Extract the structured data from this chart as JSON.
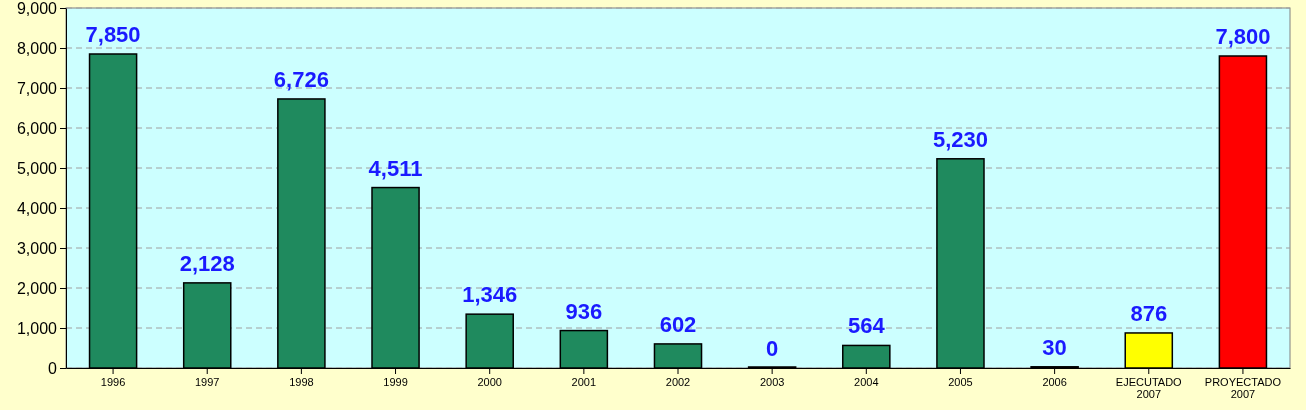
{
  "chart_data": {
    "type": "bar",
    "categories": [
      "1996",
      "1997",
      "1998",
      "1999",
      "2000",
      "2001",
      "2002",
      "2003",
      "2004",
      "2005",
      "2006",
      "EJECUTADO 2007",
      "PROYECTADO 2007"
    ],
    "values": [
      7850,
      2128,
      6726,
      4511,
      1346,
      936,
      602,
      0,
      564,
      5230,
      30,
      876,
      7800
    ],
    "colors": [
      "#1f8a5e",
      "#1f8a5e",
      "#1f8a5e",
      "#1f8a5e",
      "#1f8a5e",
      "#1f8a5e",
      "#1f8a5e",
      "#1f8a5e",
      "#1f8a5e",
      "#1f8a5e",
      "#1f8a5e",
      "#ffff00",
      "#ff0000"
    ],
    "ylim": [
      0,
      9000
    ],
    "yticks": [
      {
        "value": 0,
        "label": "0"
      },
      {
        "value": 1000,
        "label": "1,000"
      },
      {
        "value": 2000,
        "label": "2,000"
      },
      {
        "value": 3000,
        "label": "3,000"
      },
      {
        "value": 4000,
        "label": "4,000"
      },
      {
        "value": 5000,
        "label": "5,000"
      },
      {
        "value": 6000,
        "label": "6,000"
      },
      {
        "value": 7000,
        "label": "7,000"
      },
      {
        "value": 8000,
        "label": "8,000"
      },
      {
        "value": 9000,
        "label": "9,000"
      }
    ],
    "value_labels": [
      "7,850",
      "2,128",
      "6,726",
      "4,511",
      "1,346",
      "936",
      "602",
      "0",
      "564",
      "5,230",
      "30",
      "876",
      "7,800"
    ],
    "grid": "y"
  }
}
